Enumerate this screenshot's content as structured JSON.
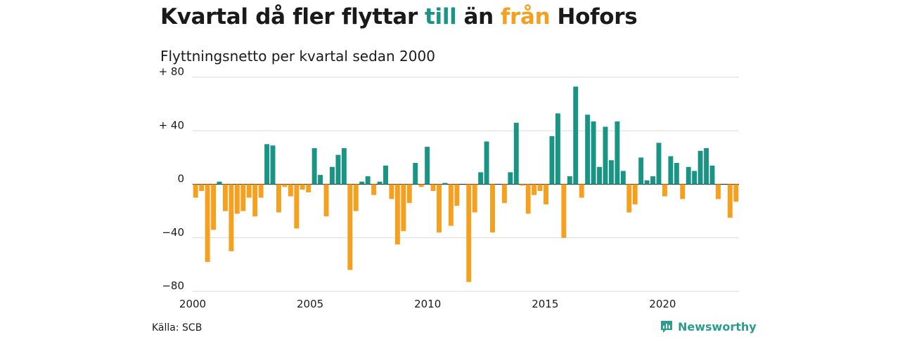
{
  "title": {
    "part1": "Kvartal då fler flyttar",
    "word_in": "till",
    "part2": "än",
    "word_out": "från",
    "part3": "Hofors"
  },
  "subtitle": "Flyttningsnetto per kvartal sedan 2000",
  "source": "Källa: SCB",
  "brand": "Newsworthy",
  "colors": {
    "positive": "#1a9585",
    "negative": "#f5a01e",
    "title_in": "#1a9585",
    "title_out": "#f5a01e",
    "grid": "#d9d9d9"
  },
  "chart_data": {
    "type": "bar",
    "title": "Kvartal då fler flyttar till än från Hofors",
    "subtitle": "Flyttningsnetto per kvartal sedan 2000",
    "x_ticks": [
      "2000",
      "2005",
      "2010",
      "2015",
      "2020"
    ],
    "y_ticks": [
      "+ 80",
      "+ 40",
      "0",
      "−40",
      "−80"
    ],
    "y_tick_values": [
      80,
      40,
      0,
      -40,
      -80
    ],
    "ylim": [
      -80,
      80
    ],
    "xlim": [
      2000,
      2023.25
    ],
    "grid": "horizontal",
    "series": [
      {
        "values": [
          -10,
          -5,
          -58,
          -34,
          2,
          -20,
          -50,
          -22,
          -20,
          -10,
          -24,
          -10,
          30,
          29,
          -21,
          -2,
          -9,
          -33,
          -4,
          -6,
          27,
          7,
          -24,
          13,
          22,
          27,
          -64,
          -20,
          2,
          6,
          -8,
          2,
          14,
          -11,
          -45,
          -35,
          -14,
          16,
          -2,
          28,
          -5,
          -36,
          1,
          -31,
          -16,
          0,
          -73,
          -21,
          9,
          32,
          -36,
          0,
          -14,
          9,
          46,
          -1,
          -22,
          -8,
          -5,
          -15,
          36,
          53,
          -40,
          6,
          73,
          -10,
          52,
          47,
          13,
          43,
          18,
          47,
          10,
          -21,
          -15,
          20,
          3,
          6,
          31,
          -9,
          21,
          16,
          -11,
          13,
          10,
          25,
          27,
          14,
          -11,
          0,
          -25,
          -13
        ]
      }
    ]
  }
}
